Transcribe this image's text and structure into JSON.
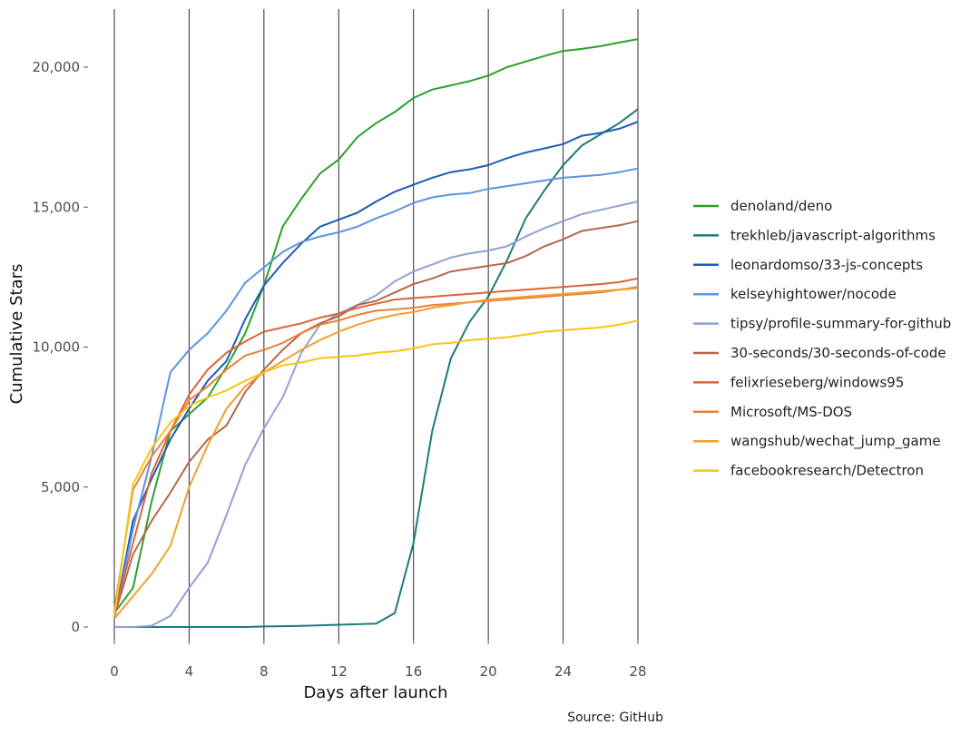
{
  "chart_data": {
    "type": "line",
    "title": "",
    "xlabel": "Days after launch",
    "ylabel": "Cumulative Stars",
    "source": "Source: GitHub",
    "xlim": [
      0,
      28
    ],
    "ylim": [
      0,
      21500
    ],
    "x_ticks": [
      0,
      4,
      8,
      12,
      16,
      20,
      24,
      28
    ],
    "x_tick_labels": [
      "0",
      "4",
      "8",
      "12",
      "16",
      "20",
      "24",
      "28"
    ],
    "y_ticks": [
      0,
      5000,
      10000,
      15000,
      20000
    ],
    "y_tick_labels": [
      "0",
      "5,000",
      "10,000",
      "15,000",
      "20,000"
    ],
    "grid": "vertical lines at x ticks",
    "legend_position": "right",
    "x": [
      0,
      1,
      2,
      3,
      4,
      5,
      6,
      7,
      8,
      9,
      10,
      11,
      12,
      13,
      14,
      15,
      16,
      17,
      18,
      19,
      20,
      21,
      22,
      23,
      24,
      25,
      26,
      27,
      28
    ],
    "series": [
      {
        "name": "denoland/deno",
        "color": "#2ca02c",
        "values": [
          500,
          1400,
          4500,
          7000,
          7600,
          8200,
          9300,
          10500,
          12200,
          14300,
          15300,
          16200,
          16700,
          17500,
          18000,
          18400,
          18900,
          19200,
          19350,
          19500,
          19700,
          20000,
          20200,
          20400,
          20580,
          20650,
          20750,
          20880,
          21000
        ]
      },
      {
        "name": "trekhleb/javascript-algorithms",
        "color": "#1f7a7a",
        "values": [
          0,
          0,
          0,
          0,
          0,
          0,
          0,
          0,
          20,
          30,
          40,
          60,
          80,
          100,
          120,
          500,
          3000,
          7000,
          9600,
          10900,
          11800,
          13100,
          14600,
          15600,
          16500,
          17200,
          17600,
          18000,
          18500
        ]
      },
      {
        "name": "leonardomso/33-js-concepts",
        "color": "#1f5bb5",
        "values": [
          300,
          3800,
          5300,
          6700,
          7800,
          8800,
          9500,
          11000,
          12200,
          13000,
          13700,
          14300,
          14550,
          14800,
          15200,
          15550,
          15800,
          16050,
          16250,
          16350,
          16500,
          16750,
          16950,
          17100,
          17250,
          17550,
          17650,
          17800,
          18050
        ]
      },
      {
        "name": "kelseyhightower/nocode",
        "color": "#5b94e0",
        "values": [
          300,
          3500,
          6100,
          9100,
          9900,
          10500,
          11300,
          12300,
          12850,
          13400,
          13750,
          13950,
          14100,
          14300,
          14600,
          14850,
          15150,
          15350,
          15450,
          15500,
          15650,
          15750,
          15850,
          15950,
          16050,
          16100,
          16150,
          16250,
          16380
        ]
      },
      {
        "name": "tipsy/profile-summary-for-github",
        "color": "#8fa0d6",
        "values": [
          0,
          0,
          50,
          400,
          1400,
          2300,
          4000,
          5800,
          7100,
          8200,
          9800,
          10800,
          11200,
          11500,
          11850,
          12350,
          12700,
          12950,
          13200,
          13350,
          13450,
          13600,
          13950,
          14250,
          14500,
          14750,
          14900,
          15050,
          15200
        ]
      },
      {
        "name": "30-seconds/30-seconds-of-code",
        "color": "#b5674a",
        "values": [
          400,
          2600,
          3800,
          4800,
          5900,
          6700,
          7200,
          8400,
          9200,
          9900,
          10500,
          10850,
          11100,
          11500,
          11650,
          11950,
          12250,
          12450,
          12700,
          12800,
          12900,
          13000,
          13250,
          13600,
          13850,
          14150,
          14250,
          14350,
          14500
        ]
      },
      {
        "name": "felixrieseberg/windows95",
        "color": "#d9643a",
        "values": [
          500,
          3000,
          5500,
          7000,
          8300,
          9200,
          9800,
          10200,
          10550,
          10700,
          10850,
          11050,
          11200,
          11400,
          11550,
          11700,
          11750,
          11800,
          11850,
          11900,
          11950,
          12000,
          12050,
          12100,
          12150,
          12200,
          12250,
          12320,
          12450
        ]
      },
      {
        "name": "Microsoft/MS-DOS",
        "color": "#e8803a",
        "values": [
          600,
          4900,
          6100,
          7000,
          8100,
          8600,
          9200,
          9700,
          9900,
          10150,
          10500,
          10800,
          10950,
          11150,
          11300,
          11350,
          11400,
          11500,
          11550,
          11600,
          11650,
          11700,
          11750,
          11800,
          11850,
          11900,
          11950,
          12050,
          12150
        ]
      },
      {
        "name": "wangshub/wechat_jump_game",
        "color": "#f0a030",
        "values": [
          300,
          1100,
          1900,
          2900,
          5000,
          6500,
          7800,
          8600,
          9100,
          9500,
          9900,
          10250,
          10550,
          10800,
          11000,
          11150,
          11250,
          11400,
          11500,
          11600,
          11700,
          11750,
          11800,
          11850,
          11900,
          11950,
          12000,
          12050,
          12100
        ]
      },
      {
        "name": "facebookresearch/Detectron",
        "color": "#f5c518",
        "values": [
          400,
          5100,
          6400,
          7300,
          7900,
          8200,
          8450,
          8800,
          9100,
          9350,
          9450,
          9600,
          9650,
          9700,
          9800,
          9850,
          9950,
          10100,
          10150,
          10250,
          10300,
          10350,
          10450,
          10550,
          10600,
          10650,
          10700,
          10800,
          10950
        ]
      }
    ]
  }
}
